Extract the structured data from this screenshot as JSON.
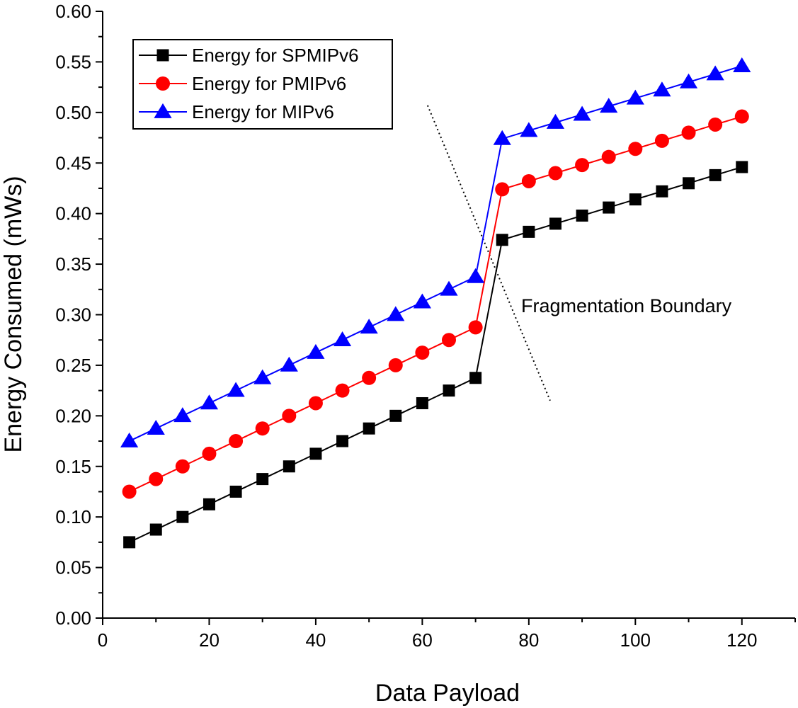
{
  "chart_data": {
    "type": "line",
    "title": "",
    "xlabel": "Data Payload",
    "ylabel": "Energy Consumed (mWs)",
    "xlim": [
      0,
      130
    ],
    "ylim": [
      0.0,
      0.6
    ],
    "xticks": [
      0,
      20,
      40,
      60,
      80,
      100,
      120
    ],
    "yticks": [
      0.0,
      0.05,
      0.1,
      0.15,
      0.2,
      0.25,
      0.3,
      0.35,
      0.4,
      0.45,
      0.5,
      0.55,
      0.6
    ],
    "xtick_labels": [
      "0",
      "20",
      "40",
      "60",
      "80",
      "100",
      "120"
    ],
    "ytick_labels": [
      "0.00",
      "0.05",
      "0.10",
      "0.15",
      "0.20",
      "0.25",
      "0.30",
      "0.35",
      "0.40",
      "0.45",
      "0.50",
      "0.55",
      "0.60"
    ],
    "grid": false,
    "legend_position": "top-left",
    "x": [
      5,
      10,
      15,
      20,
      25,
      30,
      35,
      40,
      45,
      50,
      55,
      60,
      65,
      70,
      75,
      80,
      85,
      90,
      95,
      100,
      105,
      110,
      115,
      120
    ],
    "series": [
      {
        "name": "Energy for SPMIPv6",
        "color": "#000000",
        "marker": "square",
        "values": [
          0.075,
          0.0875,
          0.1,
          0.1125,
          0.125,
          0.1375,
          0.15,
          0.1625,
          0.175,
          0.1875,
          0.2,
          0.2125,
          0.225,
          0.2375,
          0.374,
          0.382,
          0.39,
          0.398,
          0.406,
          0.414,
          0.422,
          0.43,
          0.438,
          0.446
        ]
      },
      {
        "name": "Energy for PMIPv6",
        "color": "#ff0000",
        "marker": "circle",
        "values": [
          0.125,
          0.1375,
          0.15,
          0.1625,
          0.175,
          0.1875,
          0.2,
          0.2125,
          0.225,
          0.2375,
          0.25,
          0.2625,
          0.275,
          0.2875,
          0.424,
          0.432,
          0.44,
          0.448,
          0.456,
          0.464,
          0.472,
          0.48,
          0.488,
          0.496
        ]
      },
      {
        "name": "Energy for MIPv6",
        "color": "#0000ff",
        "marker": "triangle",
        "values": [
          0.175,
          0.1875,
          0.2,
          0.2125,
          0.225,
          0.2375,
          0.25,
          0.2625,
          0.275,
          0.2875,
          0.3,
          0.3125,
          0.325,
          0.3375,
          0.474,
          0.482,
          0.49,
          0.498,
          0.506,
          0.514,
          0.522,
          0.53,
          0.538,
          0.546
        ]
      }
    ],
    "annotations": [
      {
        "text": "Fragmentation Boundary",
        "line_from": [
          61,
          0.507
        ],
        "line_to": [
          84,
          0.215
        ],
        "line_style": "dotted"
      }
    ]
  }
}
